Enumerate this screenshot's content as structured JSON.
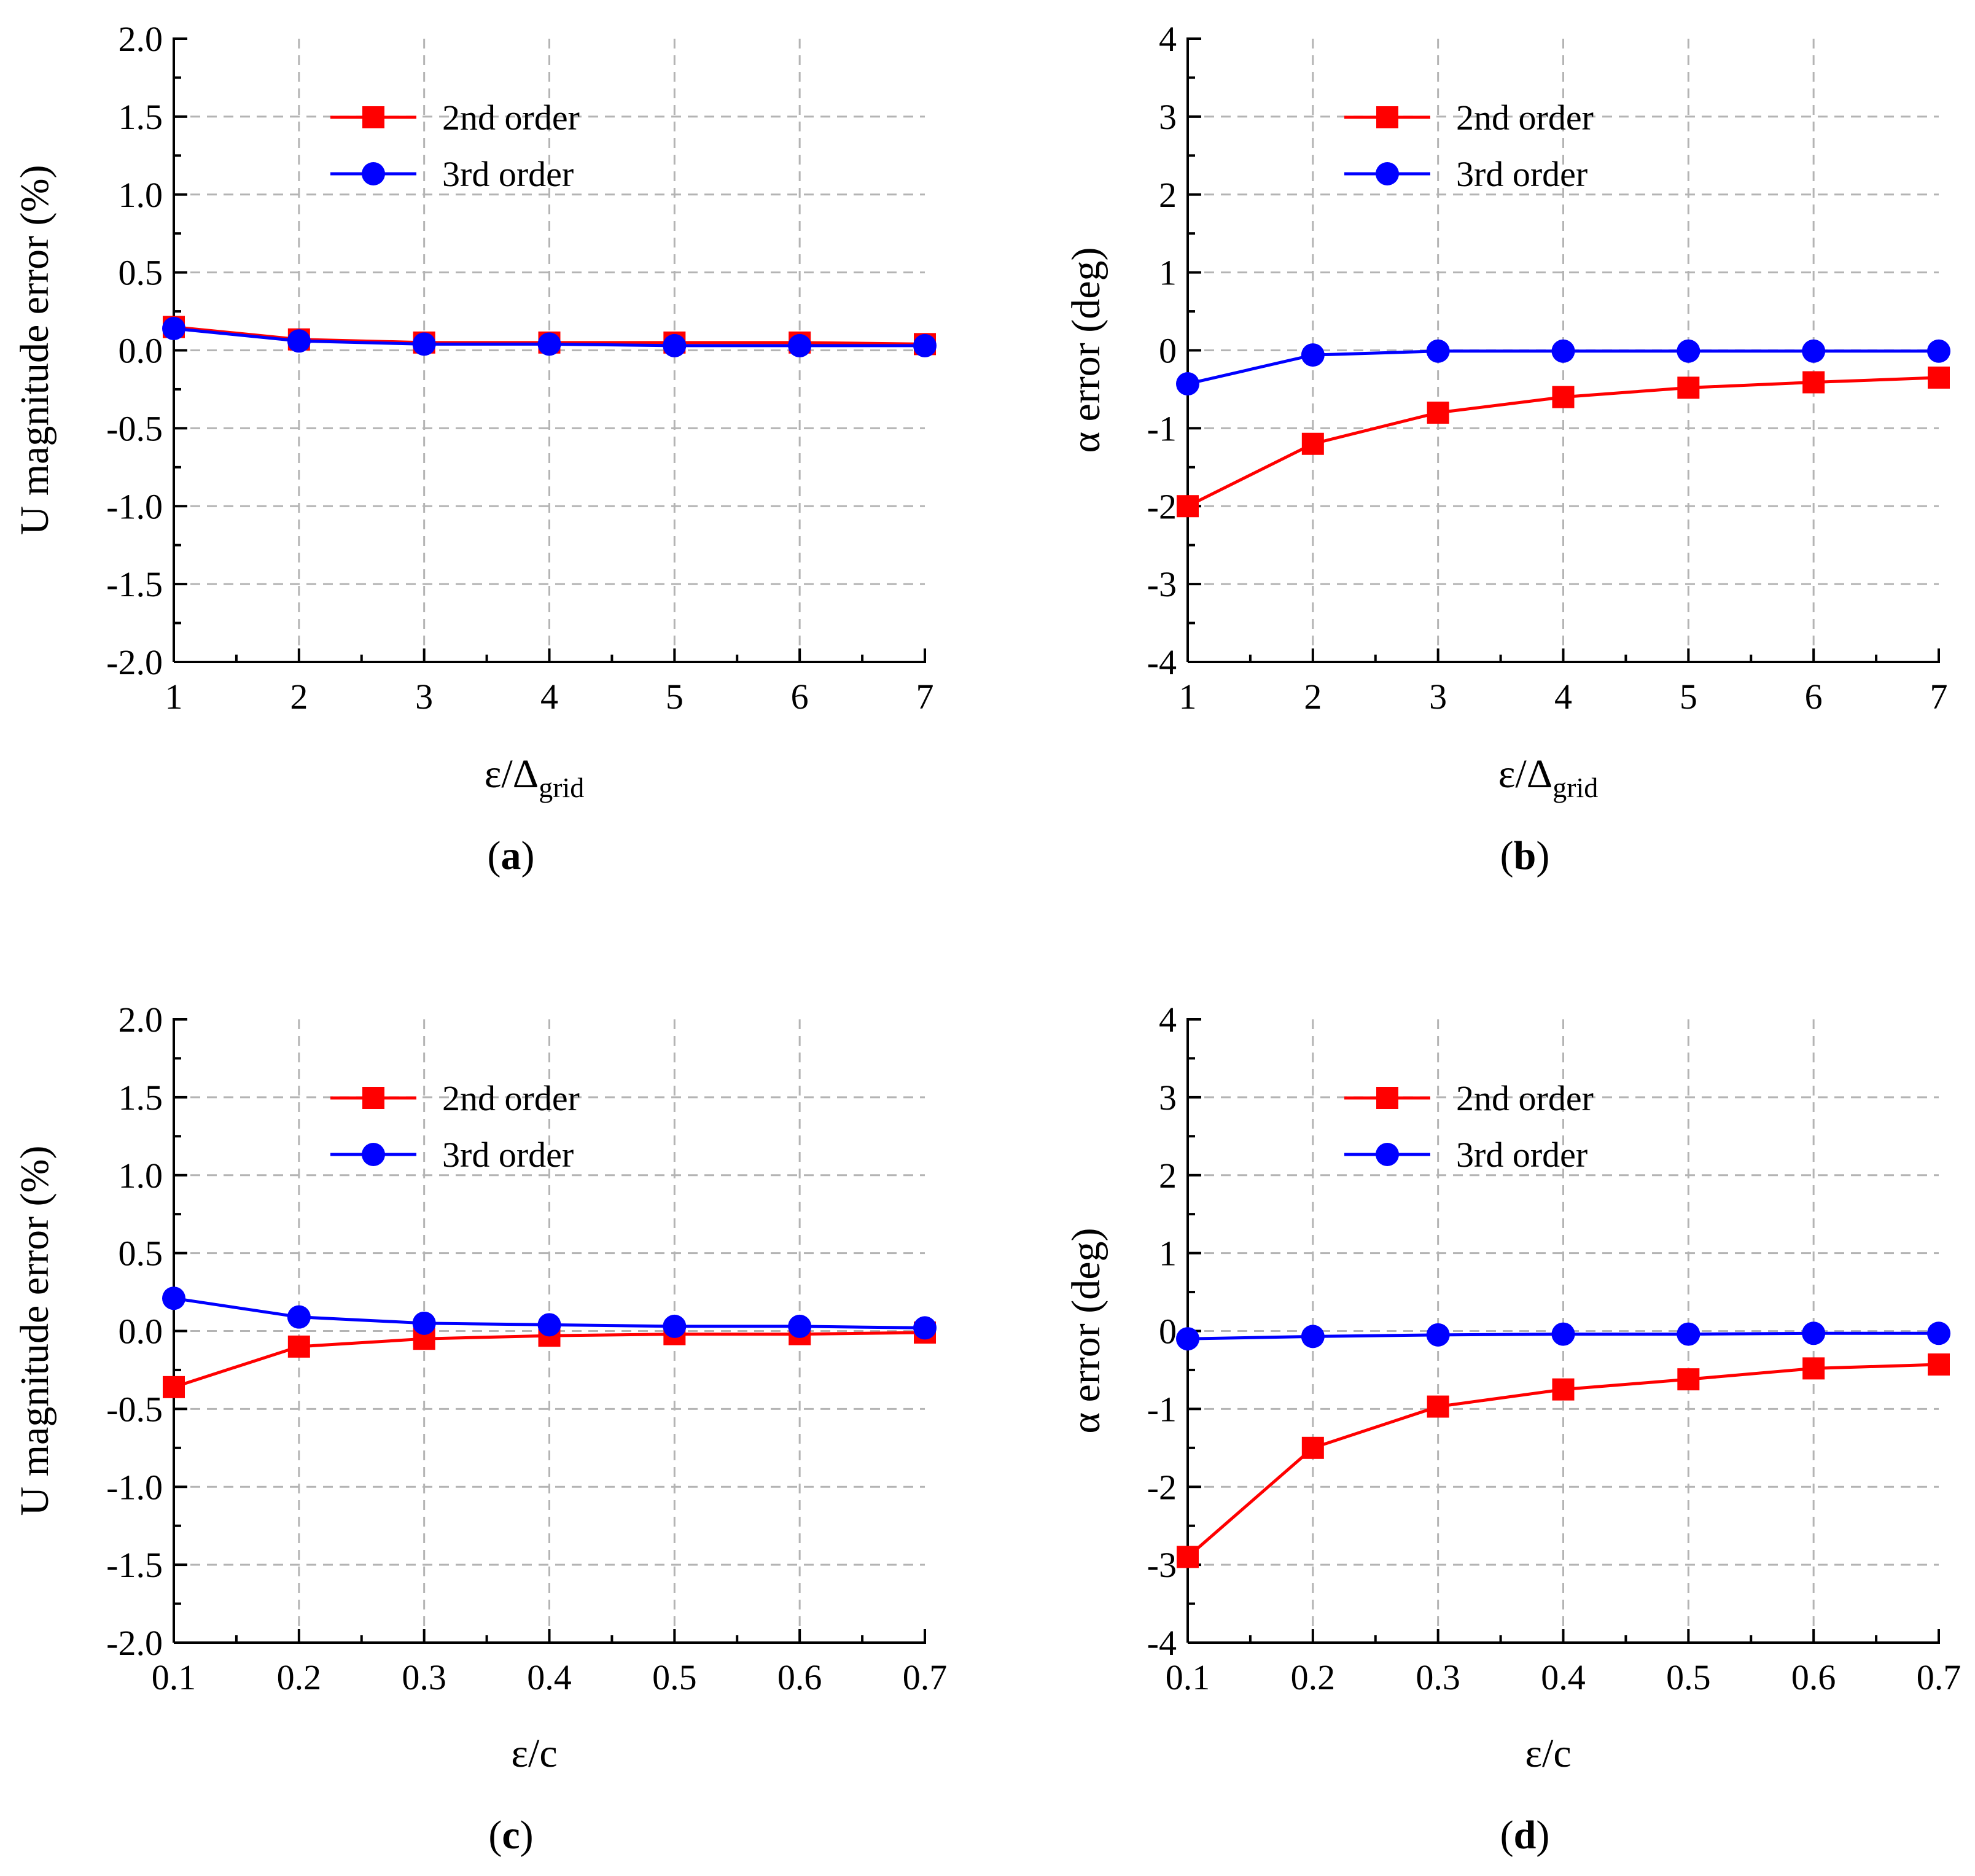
{
  "colors": {
    "series_2nd": "#ff0000",
    "series_3rd": "#0000ff",
    "grid": "#b4b4b4",
    "axis": "#000000"
  },
  "chart_data": [
    {
      "id": "a",
      "caption": "(a)",
      "caption_letter": "a",
      "type": "line",
      "xlabel": "ε/Δ",
      "xlabel_sub": "grid",
      "ylabel": "U magnitude error (%)",
      "x": [
        1,
        2,
        3,
        4,
        5,
        6,
        7
      ],
      "xlim": [
        1,
        7
      ],
      "ylim": [
        -2.0,
        2.0
      ],
      "xticks": [
        "1",
        "2",
        "3",
        "4",
        "5",
        "6",
        "7"
      ],
      "yticks": [
        "-2.0",
        "-1.5",
        "-1.0",
        "-0.5",
        "0.0",
        "0.5",
        "1.0",
        "1.5",
        "2.0"
      ],
      "ytick_values": [
        -2.0,
        -1.5,
        -1.0,
        -0.5,
        0.0,
        0.5,
        1.0,
        1.5,
        2.0
      ],
      "grid": true,
      "legend_position": "top-center",
      "series": [
        {
          "name": "2nd order",
          "marker": "square",
          "values": [
            0.15,
            0.07,
            0.05,
            0.05,
            0.05,
            0.05,
            0.04
          ]
        },
        {
          "name": "3rd order",
          "marker": "circle",
          "values": [
            0.14,
            0.06,
            0.04,
            0.04,
            0.03,
            0.03,
            0.03
          ]
        }
      ]
    },
    {
      "id": "b",
      "caption": "(b)",
      "caption_letter": "b",
      "type": "line",
      "xlabel": "ε/Δ",
      "xlabel_sub": "grid",
      "ylabel": "α error (deg)",
      "x": [
        1,
        2,
        3,
        4,
        5,
        6,
        7
      ],
      "xlim": [
        1,
        7
      ],
      "ylim": [
        -4,
        4
      ],
      "xticks": [
        "1",
        "2",
        "3",
        "4",
        "5",
        "6",
        "7"
      ],
      "yticks": [
        "-4",
        "-3",
        "-2",
        "-1",
        "0",
        "1",
        "2",
        "3",
        "4"
      ],
      "ytick_values": [
        -4,
        -3,
        -2,
        -1,
        0,
        1,
        2,
        3,
        4
      ],
      "grid": true,
      "legend_position": "top-center",
      "series": [
        {
          "name": "2nd order",
          "marker": "square",
          "values": [
            -2.0,
            -1.2,
            -0.8,
            -0.6,
            -0.48,
            -0.41,
            -0.35
          ]
        },
        {
          "name": "3rd order",
          "marker": "circle",
          "values": [
            -0.43,
            -0.06,
            -0.01,
            -0.01,
            -0.01,
            -0.01,
            -0.01
          ]
        }
      ]
    },
    {
      "id": "c",
      "caption": "(c)",
      "caption_letter": "c",
      "type": "line",
      "xlabel": "ε/c",
      "xlabel_sub": "",
      "ylabel": "U magnitude error (%)",
      "x": [
        0.1,
        0.2,
        0.3,
        0.4,
        0.5,
        0.6,
        0.7
      ],
      "xlim": [
        0.1,
        0.7
      ],
      "ylim": [
        -2.0,
        2.0
      ],
      "xticks": [
        "0.1",
        "0.2",
        "0.3",
        "0.4",
        "0.5",
        "0.6",
        "0.7"
      ],
      "yticks": [
        "-2.0",
        "-1.5",
        "-1.0",
        "-0.5",
        "0.0",
        "0.5",
        "1.0",
        "1.5",
        "2.0"
      ],
      "ytick_values": [
        -2.0,
        -1.5,
        -1.0,
        -0.5,
        0.0,
        0.5,
        1.0,
        1.5,
        2.0
      ],
      "grid": true,
      "legend_position": "top-center",
      "series": [
        {
          "name": "2nd order",
          "marker": "square",
          "values": [
            -0.36,
            -0.1,
            -0.05,
            -0.03,
            -0.02,
            -0.02,
            -0.01
          ]
        },
        {
          "name": "3rd order",
          "marker": "circle",
          "values": [
            0.21,
            0.09,
            0.05,
            0.04,
            0.03,
            0.03,
            0.02
          ]
        }
      ]
    },
    {
      "id": "d",
      "caption": "(d)",
      "caption_letter": "d",
      "type": "line",
      "xlabel": "ε/c",
      "xlabel_sub": "",
      "ylabel": "α error (deg)",
      "x": [
        0.1,
        0.2,
        0.3,
        0.4,
        0.5,
        0.6,
        0.7
      ],
      "xlim": [
        0.1,
        0.7
      ],
      "ylim": [
        -4,
        4
      ],
      "xticks": [
        "0.1",
        "0.2",
        "0.3",
        "0.4",
        "0.5",
        "0.6",
        "0.7"
      ],
      "yticks": [
        "-4",
        "-3",
        "-2",
        "-1",
        "0",
        "1",
        "2",
        "3",
        "4"
      ],
      "ytick_values": [
        -4,
        -3,
        -2,
        -1,
        0,
        1,
        2,
        3,
        4
      ],
      "grid": true,
      "legend_position": "top-center",
      "series": [
        {
          "name": "2nd order",
          "marker": "square",
          "values": [
            -2.9,
            -1.5,
            -0.97,
            -0.75,
            -0.62,
            -0.48,
            -0.43
          ]
        },
        {
          "name": "3rd order",
          "marker": "circle",
          "values": [
            -0.1,
            -0.07,
            -0.05,
            -0.04,
            -0.04,
            -0.03,
            -0.03
          ]
        }
      ]
    }
  ]
}
